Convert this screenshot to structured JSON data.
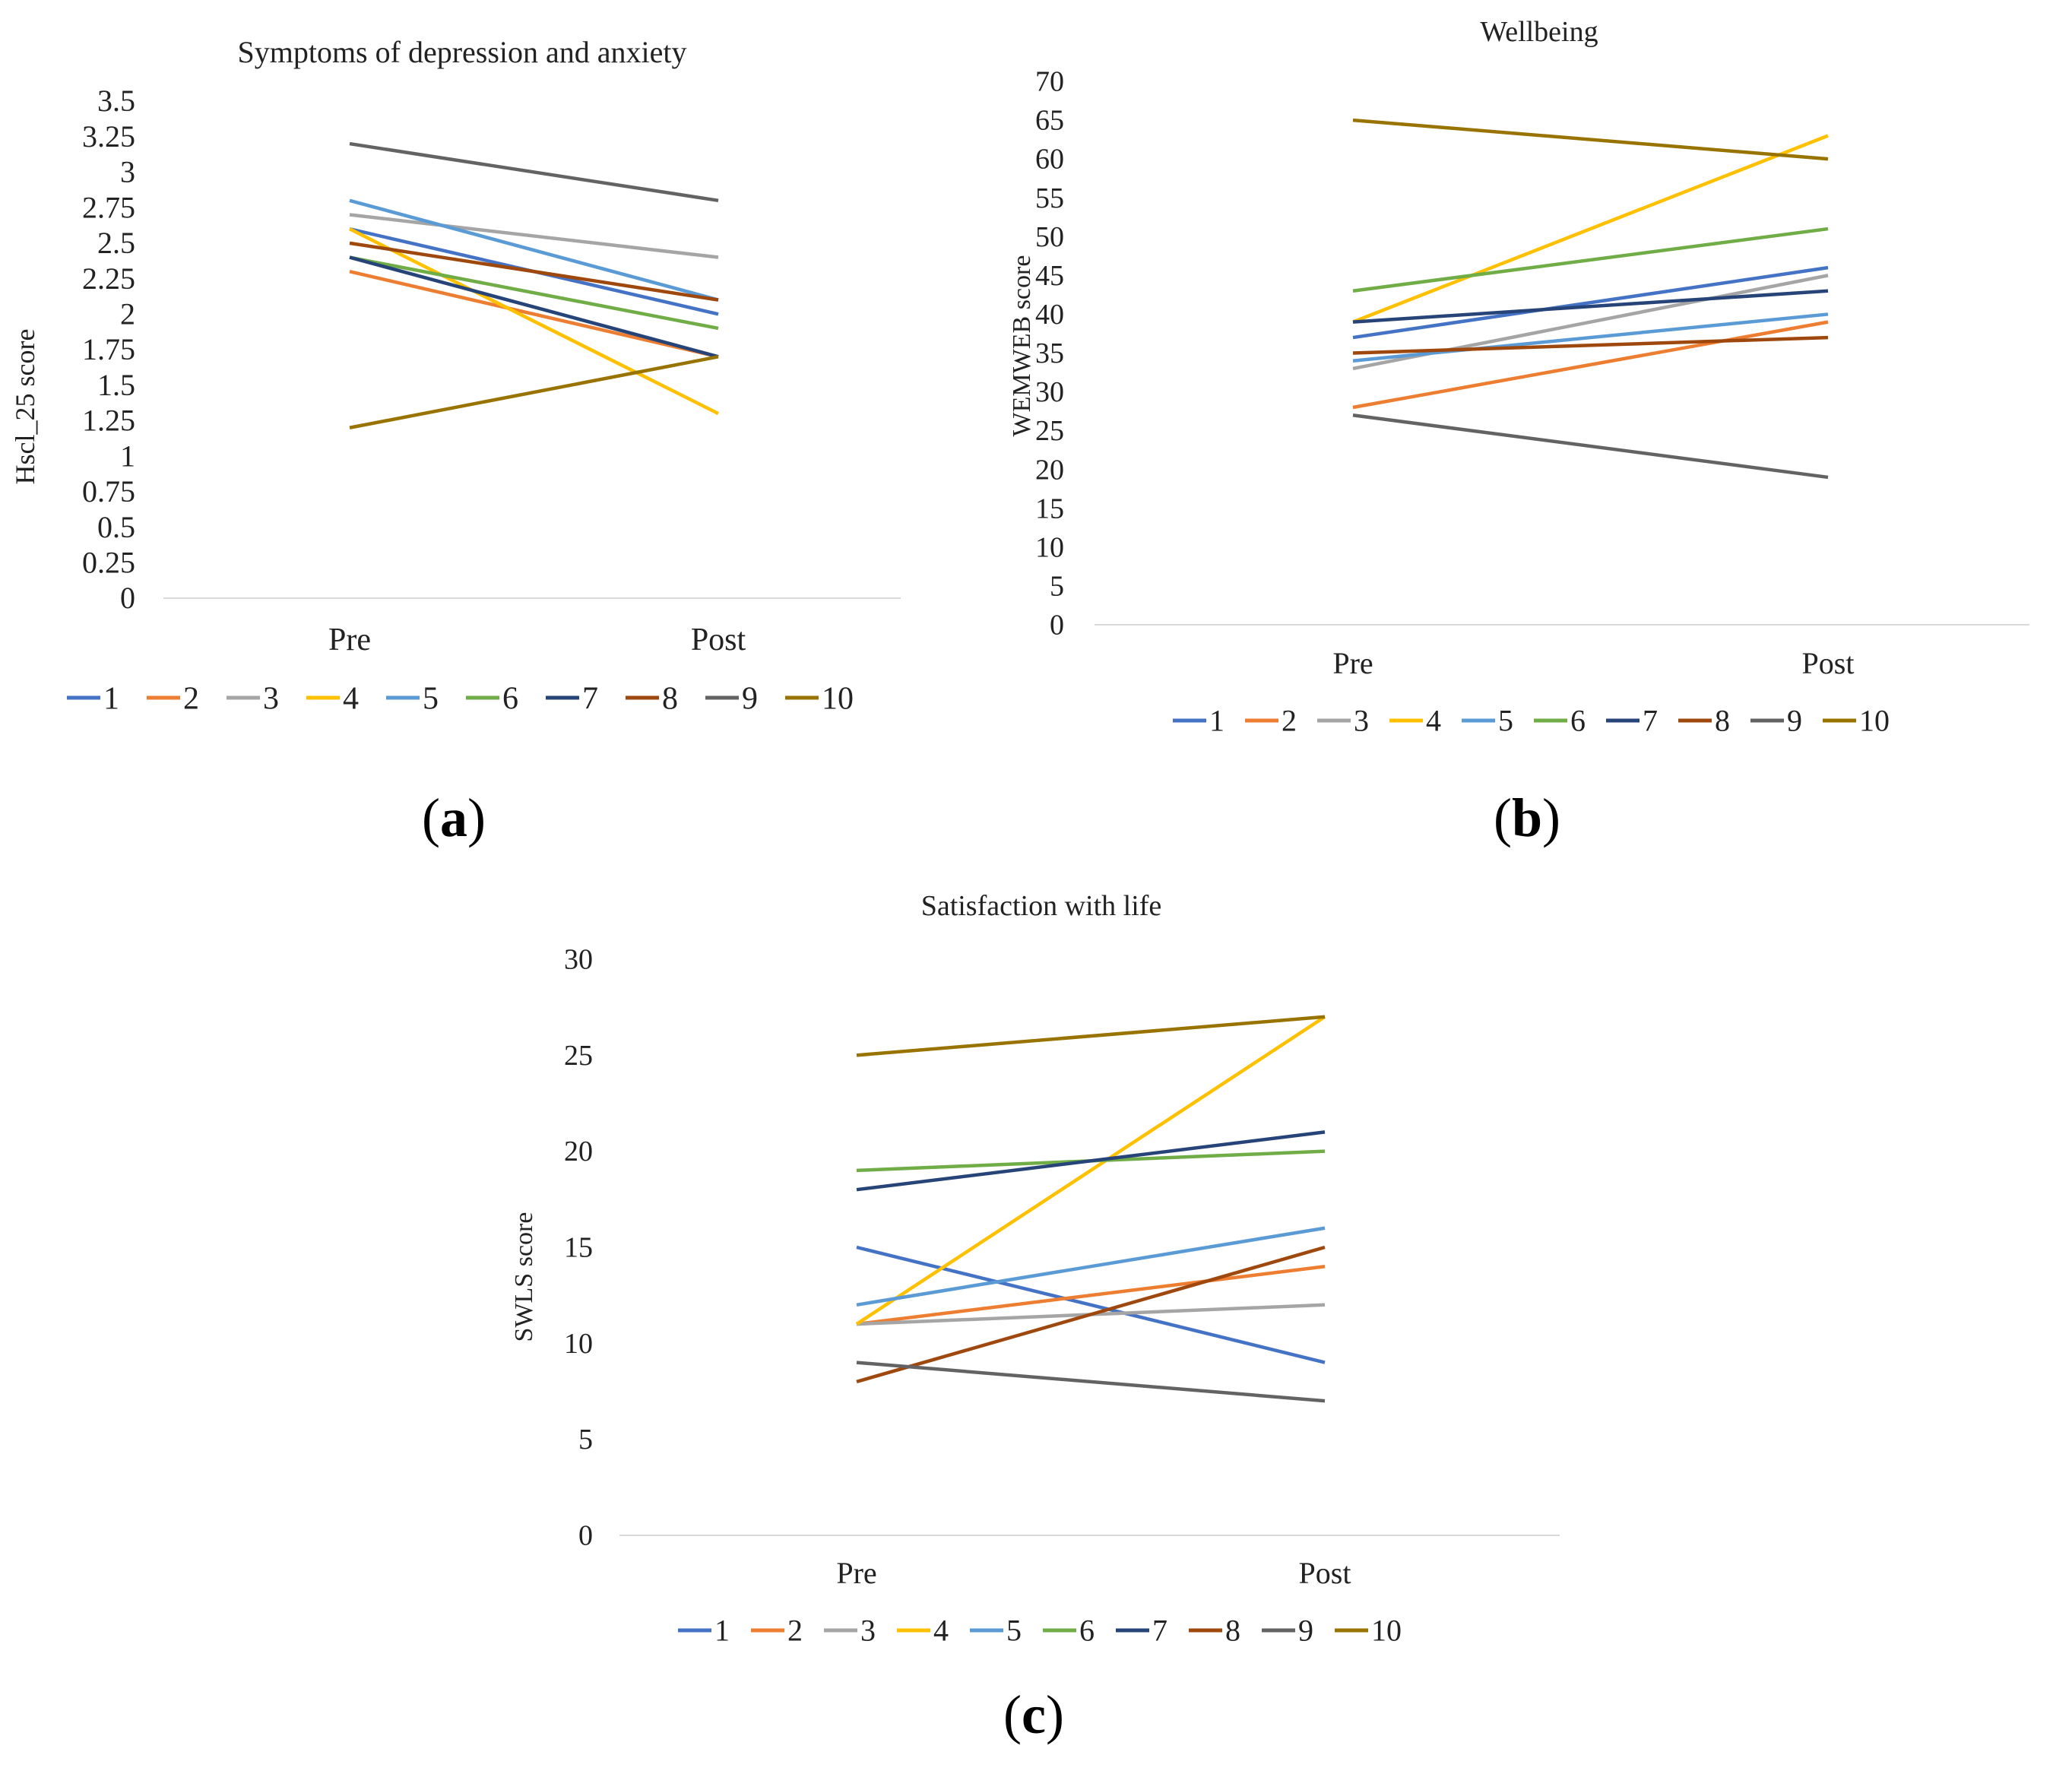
{
  "panel_labels": {
    "a": "a",
    "b": "b",
    "c": "c"
  },
  "chart_data": [
    {
      "id": "a",
      "type": "line",
      "title": "Symptoms of depression and anxiety",
      "xlabel": "",
      "ylabel": "Hscl_25 score",
      "categories": [
        "Pre",
        "Post"
      ],
      "ylim": [
        0,
        3.5
      ],
      "yticks": [
        0,
        0.25,
        0.5,
        0.75,
        1,
        1.25,
        1.5,
        1.75,
        2,
        2.25,
        2.5,
        2.75,
        3,
        3.25,
        3.5
      ],
      "ytick_labels": [
        "0",
        "0.25",
        "0.5",
        "0.75",
        "1",
        "1.25",
        "1.5",
        "1.75",
        "2",
        "2.25",
        "2.5",
        "2.75",
        "3",
        "3.25",
        "3.5"
      ],
      "legend_position": "bottom",
      "series": [
        {
          "name": "1",
          "color": "#4472C4",
          "values": [
            2.6,
            2.0
          ]
        },
        {
          "name": "2",
          "color": "#ED7D31",
          "values": [
            2.3,
            1.7
          ]
        },
        {
          "name": "3",
          "color": "#A5A5A5",
          "values": [
            2.7,
            2.4
          ]
        },
        {
          "name": "4",
          "color": "#FFC000",
          "values": [
            2.6,
            1.3
          ]
        },
        {
          "name": "5",
          "color": "#5B9BD5",
          "values": [
            2.8,
            2.1
          ]
        },
        {
          "name": "6",
          "color": "#70AD47",
          "values": [
            2.4,
            1.9
          ]
        },
        {
          "name": "7",
          "color": "#264478",
          "values": [
            2.4,
            1.7
          ]
        },
        {
          "name": "8",
          "color": "#9E480E",
          "values": [
            2.5,
            2.1
          ]
        },
        {
          "name": "9",
          "color": "#636363",
          "values": [
            3.2,
            2.8
          ]
        },
        {
          "name": "10",
          "color": "#997300",
          "values": [
            1.2,
            1.7
          ]
        }
      ]
    },
    {
      "id": "b",
      "type": "line",
      "title": "Wellbeing",
      "xlabel": "",
      "ylabel": "WEMWEB score",
      "categories": [
        "Pre",
        "Post"
      ],
      "ylim": [
        0,
        70
      ],
      "yticks": [
        0,
        5,
        10,
        15,
        20,
        25,
        30,
        35,
        40,
        45,
        50,
        55,
        60,
        65,
        70
      ],
      "ytick_labels": [
        "0",
        "5",
        "10",
        "15",
        "20",
        "25",
        "30",
        "35",
        "40",
        "45",
        "50",
        "55",
        "60",
        "65",
        "70"
      ],
      "legend_position": "bottom",
      "series": [
        {
          "name": "1",
          "color": "#4472C4",
          "values": [
            37,
            46
          ]
        },
        {
          "name": "2",
          "color": "#ED7D31",
          "values": [
            28,
            39
          ]
        },
        {
          "name": "3",
          "color": "#A5A5A5",
          "values": [
            33,
            45
          ]
        },
        {
          "name": "4",
          "color": "#FFC000",
          "values": [
            39,
            63
          ]
        },
        {
          "name": "5",
          "color": "#5B9BD5",
          "values": [
            34,
            40
          ]
        },
        {
          "name": "6",
          "color": "#70AD47",
          "values": [
            43,
            51
          ]
        },
        {
          "name": "7",
          "color": "#264478",
          "values": [
            39,
            43
          ]
        },
        {
          "name": "8",
          "color": "#9E480E",
          "values": [
            35,
            37
          ]
        },
        {
          "name": "9",
          "color": "#636363",
          "values": [
            27,
            19
          ]
        },
        {
          "name": "10",
          "color": "#997300",
          "values": [
            65,
            60
          ]
        }
      ]
    },
    {
      "id": "c",
      "type": "line",
      "title": "Satisfaction with life",
      "xlabel": "",
      "ylabel": "SWLS score",
      "categories": [
        "Pre",
        "Post"
      ],
      "ylim": [
        0,
        30
      ],
      "yticks": [
        0,
        5,
        10,
        15,
        20,
        25,
        30
      ],
      "ytick_labels": [
        "0",
        "5",
        "10",
        "15",
        "20",
        "25",
        "30"
      ],
      "legend_position": "bottom",
      "series": [
        {
          "name": "1",
          "color": "#4472C4",
          "values": [
            15,
            9
          ]
        },
        {
          "name": "2",
          "color": "#ED7D31",
          "values": [
            11,
            14
          ]
        },
        {
          "name": "3",
          "color": "#A5A5A5",
          "values": [
            11,
            12
          ]
        },
        {
          "name": "4",
          "color": "#FFC000",
          "values": [
            11,
            27
          ]
        },
        {
          "name": "5",
          "color": "#5B9BD5",
          "values": [
            12,
            16
          ]
        },
        {
          "name": "6",
          "color": "#70AD47",
          "values": [
            19,
            20
          ]
        },
        {
          "name": "7",
          "color": "#264478",
          "values": [
            18,
            21
          ]
        },
        {
          "name": "8",
          "color": "#9E480E",
          "values": [
            8,
            15
          ]
        },
        {
          "name": "9",
          "color": "#636363",
          "values": [
            9,
            7
          ]
        },
        {
          "name": "10",
          "color": "#997300",
          "values": [
            25,
            27
          ]
        }
      ]
    }
  ]
}
